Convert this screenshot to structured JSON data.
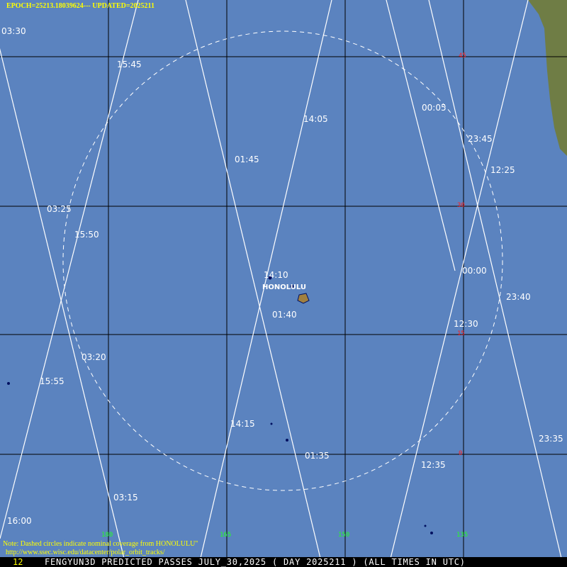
{
  "header": {
    "epoch": "EPOCH=25213.18039624",
    "separator": "---",
    "updated": "UPDATED=2025211"
  },
  "note": {
    "line1": "Note: Dashed circles indicate nominal coverage from HONOLULU\"",
    "line2": "http://www.ssec.wisc.edu/datacenter/polar_orbit_tracks/"
  },
  "bottom_bar": {
    "number": "12",
    "title": "FENGYUN3D PREDICTED PASSES JULY_30,2025 ( DAY 2025211 ) (ALL TIMES IN UTC)"
  },
  "station": {
    "name": "HONOLULU"
  },
  "latitude_labels": [
    "45",
    "30",
    "15",
    "0"
  ],
  "longitude_labels": [
    "180",
    "165",
    "150",
    "135"
  ],
  "pass_times": [
    "03:30",
    "03:25",
    "03:20",
    "03:15",
    "16:00",
    "15:55",
    "15:50",
    "15:45",
    "01:45",
    "01:40",
    "01:35",
    "14:05",
    "14:10",
    "14:15",
    "00:05",
    "00:00",
    "23:45",
    "23:40",
    "23:35",
    "12:25",
    "12:30",
    "12:35"
  ],
  "colors": {
    "ocean": "#5b83bf",
    "grid": "#000000",
    "track": "#ffffff",
    "lat_label": "#ff2020",
    "lon_label": "#22ff22",
    "header": "#ffff00"
  }
}
